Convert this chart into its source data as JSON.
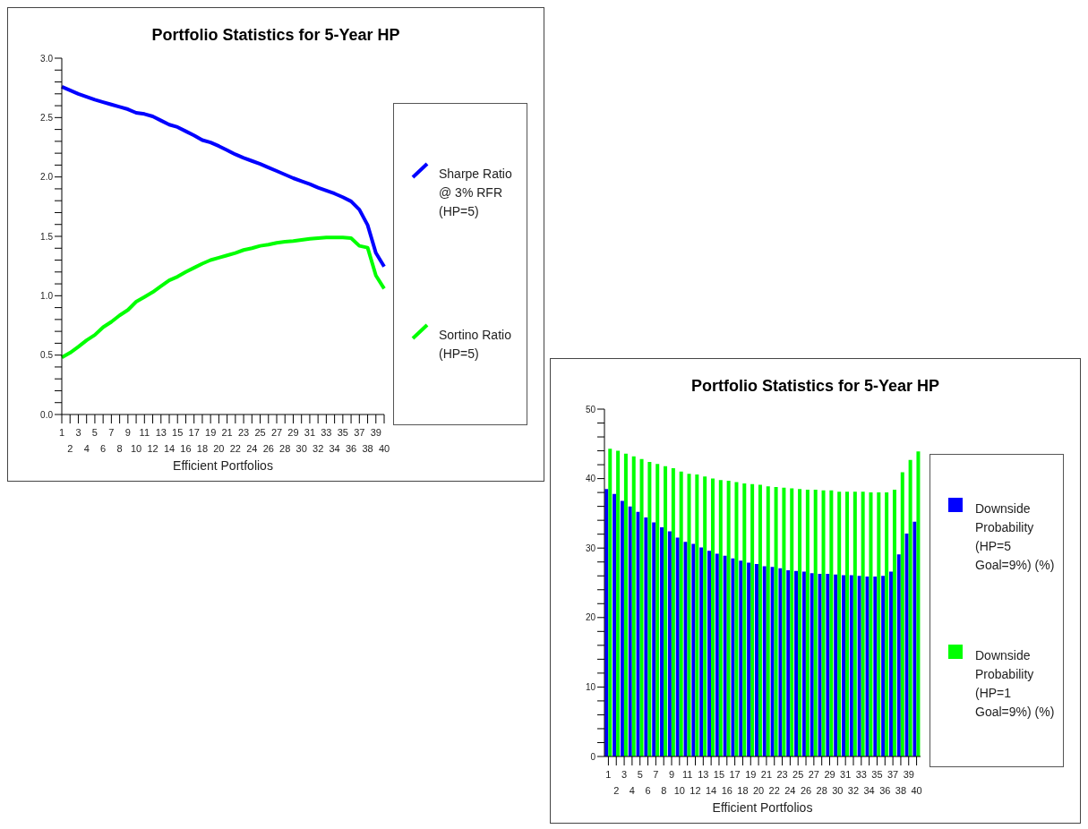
{
  "chart_data": [
    {
      "type": "line",
      "title": "Portfolio Statistics for 5-Year HP",
      "xlabel": "Efficient Portfolios",
      "categories": [
        "1",
        "2",
        "3",
        "4",
        "5",
        "6",
        "7",
        "8",
        "9",
        "10",
        "11",
        "12",
        "13",
        "14",
        "15",
        "16",
        "17",
        "18",
        "19",
        "20",
        "21",
        "22",
        "23",
        "24",
        "25",
        "26",
        "27",
        "28",
        "29",
        "30",
        "31",
        "32",
        "33",
        "34",
        "35",
        "36",
        "37",
        "38",
        "39",
        "40"
      ],
      "series": [
        {
          "name": "Sharpe Ratio @ 3% RFR (HP=5)",
          "color": "#0000ff",
          "values": [
            2.76,
            2.73,
            2.7,
            2.675,
            2.65,
            2.63,
            2.61,
            2.59,
            2.57,
            2.54,
            2.53,
            2.51,
            2.475,
            2.44,
            2.42,
            2.385,
            2.35,
            2.31,
            2.29,
            2.26,
            2.225,
            2.19,
            2.16,
            2.135,
            2.11,
            2.08,
            2.05,
            2.02,
            1.99,
            1.965,
            1.94,
            1.91,
            1.885,
            1.86,
            1.83,
            1.795,
            1.725,
            1.595,
            1.36,
            1.245
          ]
        },
        {
          "name": "Sortino Ratio (HP=5)",
          "color": "#00ff00",
          "values": [
            0.48,
            0.52,
            0.57,
            0.625,
            0.67,
            0.735,
            0.78,
            0.835,
            0.88,
            0.95,
            0.99,
            1.03,
            1.08,
            1.13,
            1.16,
            1.2,
            1.235,
            1.27,
            1.3,
            1.32,
            1.34,
            1.36,
            1.385,
            1.4,
            1.42,
            1.43,
            1.445,
            1.455,
            1.46,
            1.47,
            1.48,
            1.485,
            1.49,
            1.49,
            1.49,
            1.485,
            1.42,
            1.405,
            1.17,
            1.06
          ]
        }
      ],
      "ylim": [
        0,
        3
      ],
      "yticks": [
        {
          "value": 0,
          "label": "0.0"
        },
        {
          "value": 0.1,
          "label": null
        },
        {
          "value": 0.2,
          "label": null
        },
        {
          "value": 0.3,
          "label": null
        },
        {
          "value": 0.4,
          "label": null
        },
        0.5,
        {
          "value": 0.6,
          "label": null
        },
        {
          "value": 0.7,
          "label": null
        },
        {
          "value": 0.8,
          "label": null
        },
        {
          "value": 0.9,
          "label": null
        },
        {
          "value": 1,
          "label": "1.0"
        },
        {
          "value": 1.1,
          "label": null
        },
        {
          "value": 1.2,
          "label": null
        },
        {
          "value": 1.3,
          "label": null
        },
        {
          "value": 1.4,
          "label": null
        },
        1.5,
        {
          "value": 1.6,
          "label": null
        },
        {
          "value": 1.7,
          "label": null
        },
        {
          "value": 1.8,
          "label": null
        },
        {
          "value": 1.9,
          "label": null
        },
        {
          "value": 2,
          "label": "2.0"
        },
        {
          "value": 2.1,
          "label": null
        },
        {
          "value": 2.2,
          "label": null
        },
        {
          "value": 2.3,
          "label": null
        },
        {
          "value": 2.4,
          "label": null
        },
        2.5,
        {
          "value": 2.6,
          "label": null
        },
        {
          "value": 2.7,
          "label": null
        },
        {
          "value": 2.8,
          "label": null
        },
        {
          "value": 2.9,
          "label": null
        },
        {
          "value": 3,
          "label": "3.0"
        }
      ],
      "grid": false,
      "legend": "right",
      "marker": "none"
    },
    {
      "type": "bar",
      "title": "Portfolio Statistics for 5-Year HP",
      "xlabel": "Efficient Portfolios",
      "categories": [
        "1",
        "2",
        "3",
        "4",
        "5",
        "6",
        "7",
        "8",
        "9",
        "10",
        "11",
        "12",
        "13",
        "14",
        "15",
        "16",
        "17",
        "18",
        "19",
        "20",
        "21",
        "22",
        "23",
        "24",
        "25",
        "26",
        "27",
        "28",
        "29",
        "30",
        "31",
        "32",
        "33",
        "34",
        "35",
        "36",
        "37",
        "38",
        "39",
        "40"
      ],
      "series": [
        {
          "name": "Downside Probability (HP=5 Goal=9%) (%)",
          "color": "#0000ff",
          "values": [
            38.5,
            37.8,
            36.8,
            36.0,
            35.2,
            34.4,
            33.7,
            33.0,
            32.4,
            31.5,
            30.9,
            30.6,
            30.1,
            29.6,
            29.2,
            28.9,
            28.5,
            28.2,
            27.9,
            27.7,
            27.4,
            27.3,
            27.1,
            26.8,
            26.7,
            26.6,
            26.4,
            26.3,
            26.3,
            26.2,
            26.1,
            26.1,
            26.0,
            25.9,
            25.9,
            26.0,
            26.6,
            29.1,
            32.1,
            33.8
          ]
        },
        {
          "name": "Downside Probability (HP=1 Goal=9%) (%)",
          "color": "#00ff00",
          "values": [
            44.3,
            44.0,
            43.6,
            43.2,
            42.8,
            42.4,
            42.1,
            41.8,
            41.5,
            41.0,
            40.7,
            40.6,
            40.3,
            40.0,
            39.8,
            39.7,
            39.5,
            39.3,
            39.2,
            39.1,
            38.9,
            38.8,
            38.7,
            38.6,
            38.5,
            38.4,
            38.4,
            38.3,
            38.3,
            38.1,
            38.1,
            38.1,
            38.1,
            38.0,
            38.0,
            38.0,
            38.4,
            40.9,
            42.7,
            43.9
          ]
        }
      ],
      "ylim": [
        0,
        50
      ],
      "yticks": [
        0,
        {
          "value": 2,
          "label": null
        },
        {
          "value": 4,
          "label": null
        },
        {
          "value": 6,
          "label": null
        },
        {
          "value": 8,
          "label": null
        },
        10,
        {
          "value": 12,
          "label": null
        },
        {
          "value": 14,
          "label": null
        },
        {
          "value": 16,
          "label": null
        },
        {
          "value": 18,
          "label": null
        },
        20,
        {
          "value": 22,
          "label": null
        },
        {
          "value": 24,
          "label": null
        },
        {
          "value": 26,
          "label": null
        },
        {
          "value": 28,
          "label": null
        },
        30,
        {
          "value": 32,
          "label": null
        },
        {
          "value": 34,
          "label": null
        },
        {
          "value": 36,
          "label": null
        },
        {
          "value": 38,
          "label": null
        },
        40,
        {
          "value": 42,
          "label": null
        },
        {
          "value": 44,
          "label": null
        },
        {
          "value": 46,
          "label": null
        },
        {
          "value": 48,
          "label": null
        },
        50
      ],
      "grid": false,
      "legend": "right"
    }
  ]
}
